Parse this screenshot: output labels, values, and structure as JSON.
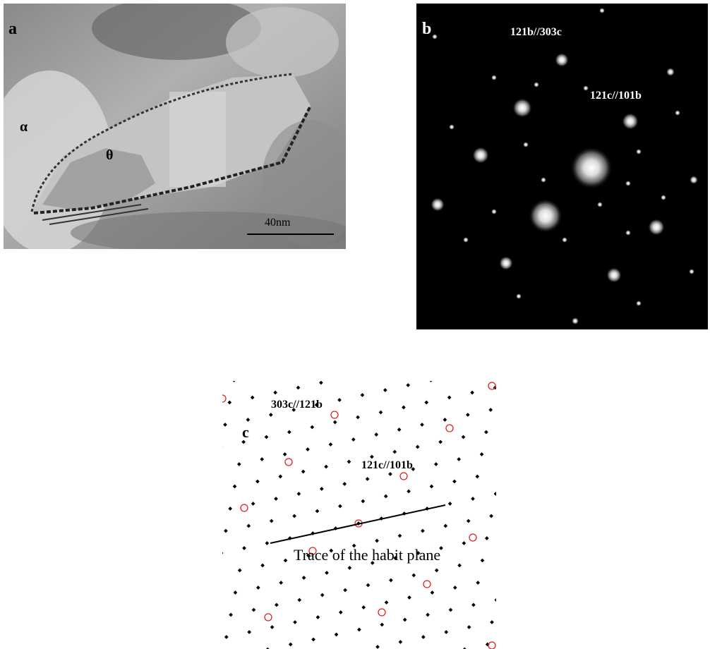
{
  "panels": [
    {
      "label": "a",
      "texts": [
        "α",
        "θ",
        "40nm"
      ]
    },
    {
      "label": "b",
      "texts": [
        "121b//303c",
        "121c//101b"
      ]
    },
    {
      "label": "c",
      "texts": [
        "303c//121b",
        "121c//101b",
        "Trace of the habit plane"
      ]
    }
  ]
}
